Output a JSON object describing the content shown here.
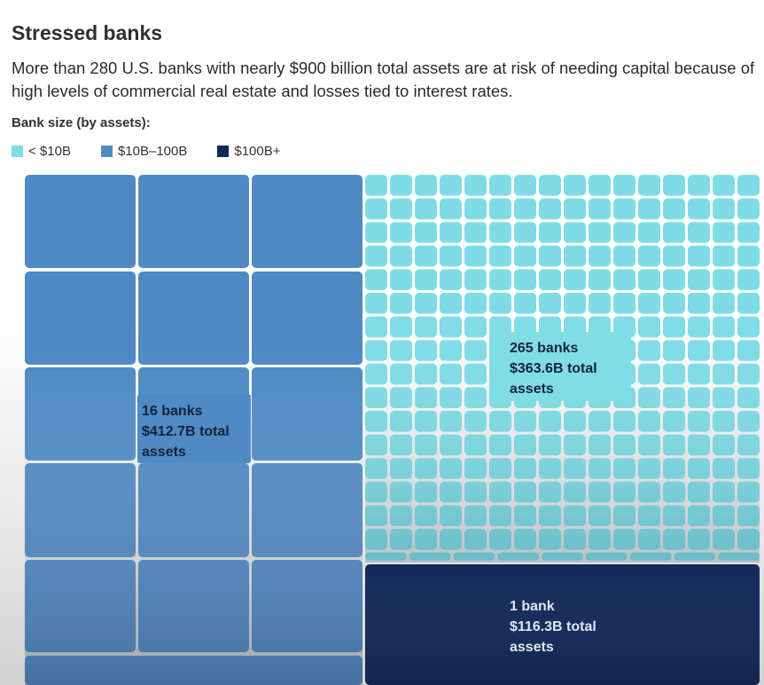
{
  "title": "Stressed banks",
  "subtitle": "More than 280 U.S. banks with nearly $900 billion total assets are at risk of needing capital because of high levels of commercial real estate and losses tied to interest rates.",
  "legend": {
    "title": "Bank size (by assets):",
    "items": [
      {
        "label": "< $10B",
        "color": "#7fdce6"
      },
      {
        "label": "$10B–100B",
        "color": "#4f8ac4"
      },
      {
        "label": "$100B+",
        "color": "#13295a"
      }
    ]
  },
  "chart_data": {
    "type": "treemap",
    "title": "Stressed banks",
    "groups": [
      {
        "category": "$10B–100B",
        "banks": 16,
        "total_assets_billion": 412.7,
        "label_lines": [
          "16 banks",
          "$412.7B total",
          "assets"
        ],
        "color": "#4f8ac4"
      },
      {
        "category": "< $10B",
        "banks": 265,
        "total_assets_billion": 363.6,
        "label_lines": [
          "265 banks",
          "$363.6B total",
          "assets"
        ],
        "color": "#7fdce6"
      },
      {
        "category": "$100B+",
        "banks": 1,
        "total_assets_billion": 116.3,
        "label_lines": [
          "1 bank",
          "$116.3B total",
          "assets"
        ],
        "color": "#13295a"
      }
    ]
  }
}
